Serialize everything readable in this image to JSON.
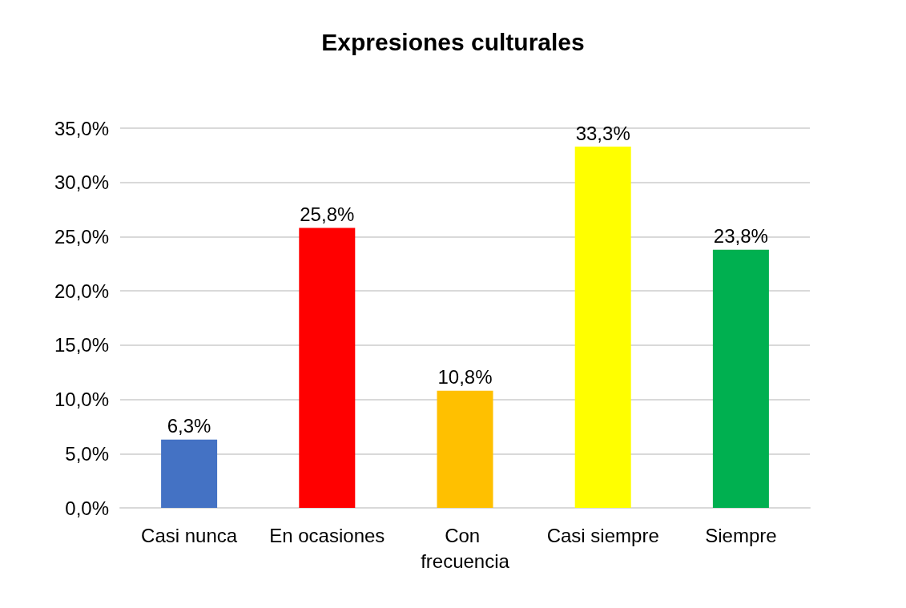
{
  "chart_data": {
    "type": "bar",
    "title": "Expresiones culturales",
    "categories": [
      "Casi nunca",
      "En ocasiones",
      "Con frecuencia",
      "Casi siempre",
      "Siempre"
    ],
    "values": [
      6.3,
      25.8,
      10.8,
      33.3,
      23.8
    ],
    "colors": [
      "#4472c4",
      "#ff0000",
      "#ffc000",
      "#ffff00",
      "#00b050"
    ],
    "value_labels": [
      "6,3%",
      "25,8%",
      "10,8%",
      "33,3%",
      "23,8%"
    ],
    "ylim": [
      0,
      35
    ],
    "yticks": [
      {
        "value": 0,
        "label": "0,0%"
      },
      {
        "value": 5,
        "label": "5,0%"
      },
      {
        "value": 10,
        "label": "10,0%"
      },
      {
        "value": 15,
        "label": "15,0%"
      },
      {
        "value": 20,
        "label": "20,0%"
      },
      {
        "value": 25,
        "label": "25,0%"
      },
      {
        "value": 30,
        "label": "30,0%"
      },
      {
        "value": 35,
        "label": "35,0%"
      }
    ],
    "grid": "y"
  }
}
